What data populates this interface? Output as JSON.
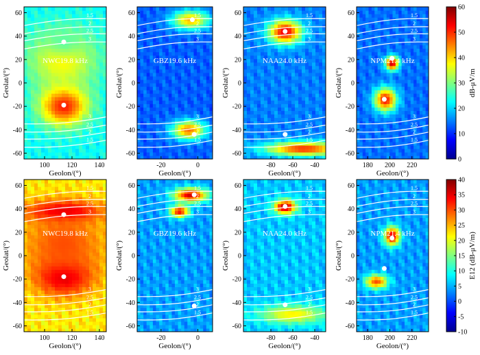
{
  "chart_data": {
    "type": "heatmap",
    "x_axis_label": "Geolon/(°)",
    "y_axis_label": "Geolat/(°)",
    "contour_levels": [
      "1.5",
      "2",
      "2.5",
      "3"
    ],
    "rows": [
      {
        "row": "top",
        "colorbar": {
          "label": "dB-μV/m",
          "range": [
            0,
            60
          ],
          "ticks": [
            "0",
            "10",
            "20",
            "30",
            "40",
            "50",
            "60"
          ],
          "tick_values": [
            0,
            10,
            20,
            30,
            40,
            50,
            60
          ]
        },
        "panels": [
          {
            "station": "NWC19.8 kHz",
            "xlim": [
              85,
              145
            ],
            "ylim": [
              -65,
              65
            ],
            "xticks": [
              100,
              120,
              140
            ],
            "xtick_labels": [
              "100",
              "120",
              "140"
            ],
            "yticks": [
              -60,
              -40,
              -20,
              0,
              20,
              40,
              60
            ],
            "ytick_labels": [
              "-60",
              "-40",
              "-20",
              "0",
              "20",
              "40",
              "60"
            ],
            "conjugate_points": [
              [
                114,
                35
              ],
              [
                114,
                -19
              ]
            ],
            "hotspots": [
              {
                "lon": 114,
                "lat": -19,
                "value": 52,
                "rx": 17,
                "ry": 17
              },
              {
                "lon": 113,
                "lat": 20,
                "value": 38,
                "rx": 25,
                "ry": 25
              },
              {
                "lon": 114,
                "lat": 36,
                "value": 28,
                "rx": 14,
                "ry": 12
              }
            ],
            "background": 23
          },
          {
            "station": "GBZ19.6 kHz",
            "xlim": [
              -33,
              8
            ],
            "ylim": [
              -65,
              65
            ],
            "xticks": [
              -20,
              0
            ],
            "xtick_labels": [
              "-20",
              "0"
            ],
            "yticks": [
              -60,
              -40,
              -20,
              0,
              20,
              40,
              60
            ],
            "ytick_labels": [
              "-60",
              "-40",
              "-20",
              "0",
              "20",
              "40",
              "60"
            ],
            "conjugate_points": [
              [
                -3,
                54
              ],
              [
                -2,
                -44
              ]
            ],
            "hotspots": [
              {
                "lon": -4,
                "lat": 54,
                "value": 42,
                "rx": 10,
                "ry": 8
              },
              {
                "lon": -5,
                "lat": -40,
                "value": 46,
                "rx": 9,
                "ry": 8
              }
            ],
            "background": 13
          },
          {
            "station": "NAA24.0 kHz",
            "xlim": [
              -105,
              -30
            ],
            "ylim": [
              -65,
              65
            ],
            "xticks": [
              -80,
              -60,
              -40
            ],
            "xtick_labels": [
              "-80",
              "-60",
              "-40"
            ],
            "yticks": [
              -60,
              -40,
              -20,
              0,
              20,
              40,
              60
            ],
            "ytick_labels": [
              "-60",
              "-40",
              "-20",
              "0",
              "20",
              "40",
              "60"
            ],
            "conjugate_points": [
              [
                -67,
                44
              ],
              [
                -67,
                -44
              ]
            ],
            "hotspots": [
              {
                "lon": -67,
                "lat": 44,
                "value": 54,
                "rx": 15,
                "ry": 10
              },
              {
                "lon": -50,
                "lat": -56,
                "value": 50,
                "rx": 35,
                "ry": 6
              }
            ],
            "background": 15
          },
          {
            "station": "NPM21.4 kHz",
            "xlim": [
              170,
              235
            ],
            "ylim": [
              -65,
              65
            ],
            "xticks": [
              180,
              200,
              220
            ],
            "xtick_labels": [
              "180",
              "200",
              "220"
            ],
            "yticks": [
              -60,
              -40,
              -20,
              0,
              20,
              40,
              60
            ],
            "ytick_labels": [
              "-60",
              "-40",
              "-20",
              "0",
              "20",
              "40",
              "60"
            ],
            "conjugate_points": [
              [
                202,
                21
              ],
              [
                195,
                -14
              ]
            ],
            "hotspots": [
              {
                "lon": 202,
                "lat": 17,
                "value": 56,
                "rx": 6,
                "ry": 6
              },
              {
                "lon": 196,
                "lat": -14,
                "value": 52,
                "rx": 10,
                "ry": 10
              }
            ],
            "background": 14
          }
        ]
      },
      {
        "row": "bottom",
        "colorbar": {
          "label": "E12 (dB-μV/m)",
          "range": [
            -10,
            40
          ],
          "ticks": [
            "-10",
            "-5",
            "0",
            "5",
            "10",
            "15",
            "20",
            "25",
            "30",
            "35",
            "40"
          ],
          "tick_values": [
            -10,
            -5,
            0,
            5,
            10,
            15,
            20,
            25,
            30,
            35,
            40
          ]
        },
        "panels": [
          {
            "station": "NWC19.8 kHz",
            "xlim": [
              85,
              145
            ],
            "ylim": [
              -65,
              65
            ],
            "xticks": [
              100,
              120,
              140
            ],
            "xtick_labels": [
              "100",
              "120",
              "140"
            ],
            "yticks": [
              -60,
              -40,
              -20,
              0,
              20,
              40,
              60
            ],
            "ytick_labels": [
              "-60",
              "-40",
              "-20",
              "0",
              "20",
              "40",
              "60"
            ],
            "conjugate_points": [
              [
                114,
                35
              ],
              [
                114,
                -18
              ]
            ],
            "hotspots": [
              {
                "lon": 114,
                "lat": 38,
                "value": 38,
                "rx": 26,
                "ry": 9
              },
              {
                "lon": 114,
                "lat": -17,
                "value": 38,
                "rx": 20,
                "ry": 16
              },
              {
                "lon": 114,
                "lat": 10,
                "value": 30,
                "rx": 30,
                "ry": 30
              }
            ],
            "background": 22
          },
          {
            "station": "GBZ19.6 kHz",
            "xlim": [
              -33,
              8
            ],
            "ylim": [
              -65,
              65
            ],
            "xticks": [
              -20,
              0
            ],
            "xtick_labels": [
              "-20",
              "0"
            ],
            "yticks": [
              -60,
              -40,
              -20,
              0,
              20,
              40,
              60
            ],
            "ytick_labels": [
              "-60",
              "-40",
              "-20",
              "0",
              "20",
              "40",
              "60"
            ],
            "conjugate_points": [
              [
                -2,
                52
              ],
              [
                -2,
                -43
              ]
            ],
            "hotspots": [
              {
                "lon": -4,
                "lat": 52,
                "value": 36,
                "rx": 9,
                "ry": 6
              },
              {
                "lon": -10,
                "lat": 38,
                "value": 34,
                "rx": 5,
                "ry": 5
              }
            ],
            "background": 4
          },
          {
            "station": "NAA24.0 kHz",
            "xlim": [
              -105,
              -30
            ],
            "ylim": [
              -65,
              65
            ],
            "xticks": [
              -80,
              -60,
              -40
            ],
            "xtick_labels": [
              "-80",
              "-60",
              "-40"
            ],
            "yticks": [
              -60,
              -40,
              -20,
              0,
              20,
              40,
              60
            ],
            "ytick_labels": [
              "-60",
              "-40",
              "-20",
              "0",
              "20",
              "40",
              "60"
            ],
            "conjugate_points": [
              [
                -67,
                42
              ],
              [
                -67,
                -42
              ]
            ],
            "hotspots": [
              {
                "lon": -67,
                "lat": 42,
                "value": 38,
                "rx": 10,
                "ry": 6
              },
              {
                "lon": -60,
                "lat": -50,
                "value": 22,
                "rx": 30,
                "ry": 8
              }
            ],
            "background": 6
          },
          {
            "station": "NPM21.4 kHz",
            "xlim": [
              170,
              235
            ],
            "ylim": [
              -65,
              65
            ],
            "xticks": [
              180,
              200,
              220
            ],
            "xtick_labels": [
              "180",
              "200",
              "220"
            ],
            "yticks": [
              -60,
              -40,
              -20,
              0,
              20,
              40,
              60
            ],
            "ytick_labels": [
              "-60",
              "-40",
              "-20",
              "0",
              "20",
              "40",
              "60"
            ],
            "conjugate_points": [
              [
                202,
                15
              ],
              [
                195,
                -11
              ]
            ],
            "hotspots": [
              {
                "lon": 202,
                "lat": 17,
                "value": 36,
                "rx": 7,
                "ry": 8
              },
              {
                "lon": 188,
                "lat": -22,
                "value": 30,
                "rx": 10,
                "ry": 6
              }
            ],
            "background": 4
          }
        ]
      }
    ]
  }
}
